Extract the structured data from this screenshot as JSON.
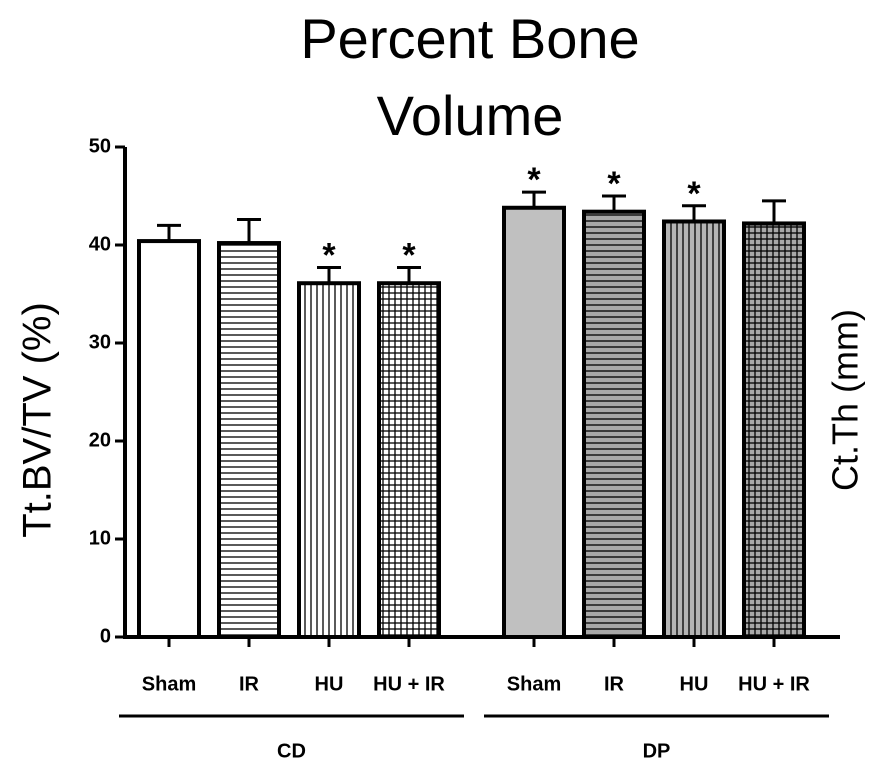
{
  "chart_data": {
    "type": "bar",
    "title": "Percent Bone Volume",
    "y_label": "Tt.BV/TV (%)",
    "y2_label": "Ct.Th (mm)",
    "categories": [
      "Sham",
      "IR",
      "HU",
      "HU + IR",
      "Sham",
      "IR",
      "HU",
      "HU + IR"
    ],
    "values": [
      40.4,
      40.2,
      36.1,
      36.1,
      43.8,
      43.4,
      42.4,
      42.2
    ],
    "errors": [
      1.6,
      2.4,
      1.6,
      1.6,
      1.6,
      1.6,
      1.6,
      2.3
    ],
    "colors": [
      "#ffffff",
      "#ffffff",
      "#ffffff",
      "#ffffff",
      "#c0c0c0",
      "#a8a8a8",
      "#b4b4b4",
      "#a8a8a8"
    ],
    "patterns": [
      "none",
      "horizontal",
      "vertical",
      "grid",
      "none",
      "horizontal",
      "vertical",
      "grid"
    ],
    "groups": [
      {
        "label": "CD",
        "categories": [
          0,
          1,
          2,
          3
        ]
      },
      {
        "label": "DP",
        "categories": [
          4,
          5,
          6,
          7
        ]
      }
    ],
    "annotations": [
      {
        "text": "*",
        "x": 2
      },
      {
        "text": "*",
        "x": 3
      },
      {
        "text": "*",
        "x": 4
      },
      {
        "text": "*",
        "x": 5
      },
      {
        "text": "*",
        "x": 6
      }
    ],
    "ylim": [
      0,
      50
    ],
    "yticks": [
      0,
      10,
      20,
      30,
      40,
      50
    ],
    "grid": false
  }
}
